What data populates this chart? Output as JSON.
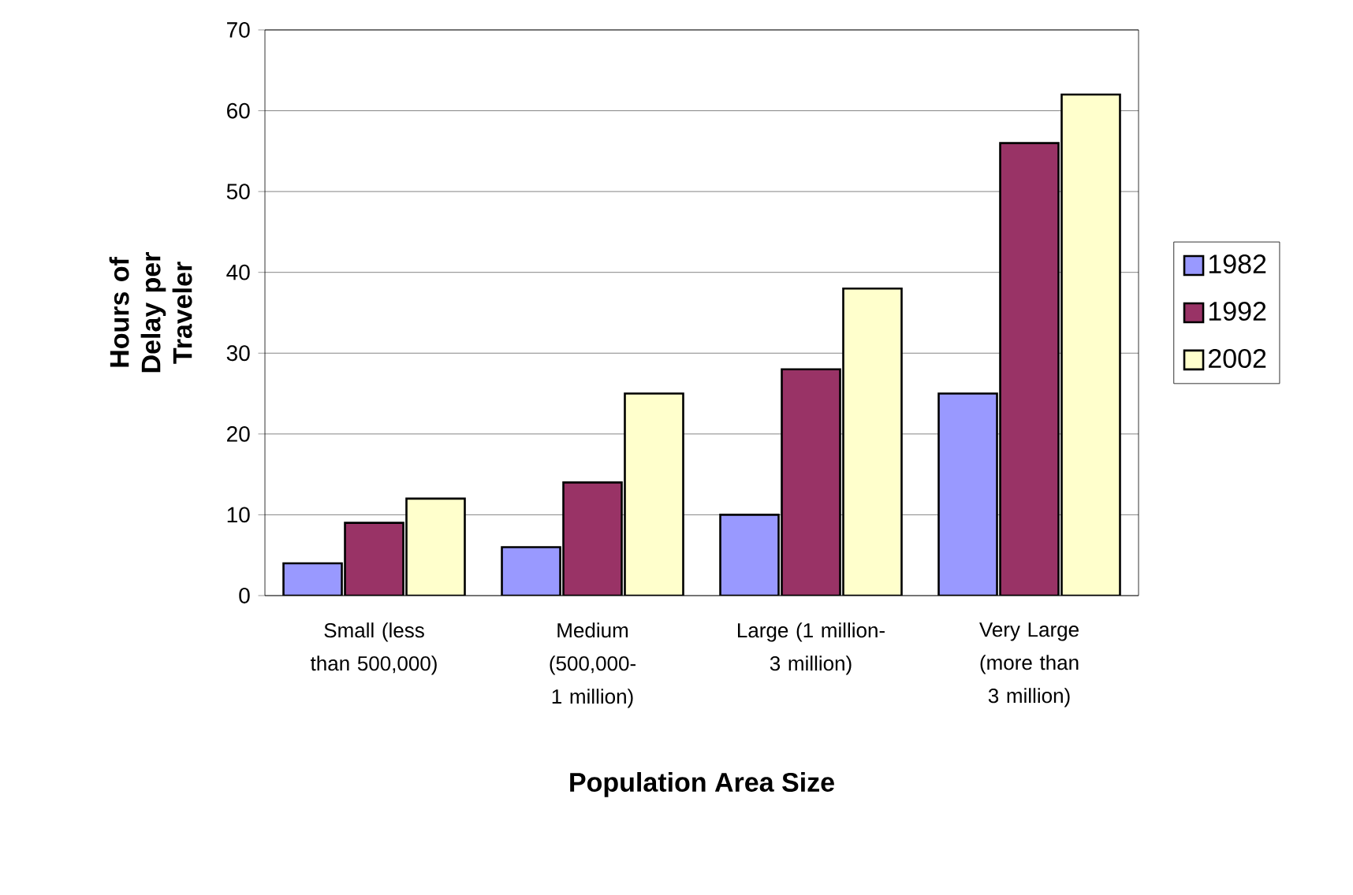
{
  "chart_data": {
    "type": "bar",
    "xlabel": "Population Area Size",
    "ylabel": "Hours of Delay per Traveler",
    "categories": [
      "Small (less than 500,000)",
      "Medium (500,000- 1 million)",
      "Large (1 million- 3 million)",
      "Very Large (more than 3 million)"
    ],
    "series": [
      {
        "name": "1982",
        "color": "#9999ff",
        "values": [
          4,
          6,
          10,
          25
        ]
      },
      {
        "name": "1992",
        "color": "#993366",
        "values": [
          9,
          14,
          28,
          56
        ]
      },
      {
        "name": "2002",
        "color": "#ffffcc",
        "values": [
          12,
          25,
          38,
          62
        ]
      }
    ],
    "ylim": [
      0,
      70
    ],
    "yticks": [
      0,
      10,
      20,
      30,
      40,
      50,
      60,
      70
    ],
    "grid": "y",
    "legend": "right"
  }
}
